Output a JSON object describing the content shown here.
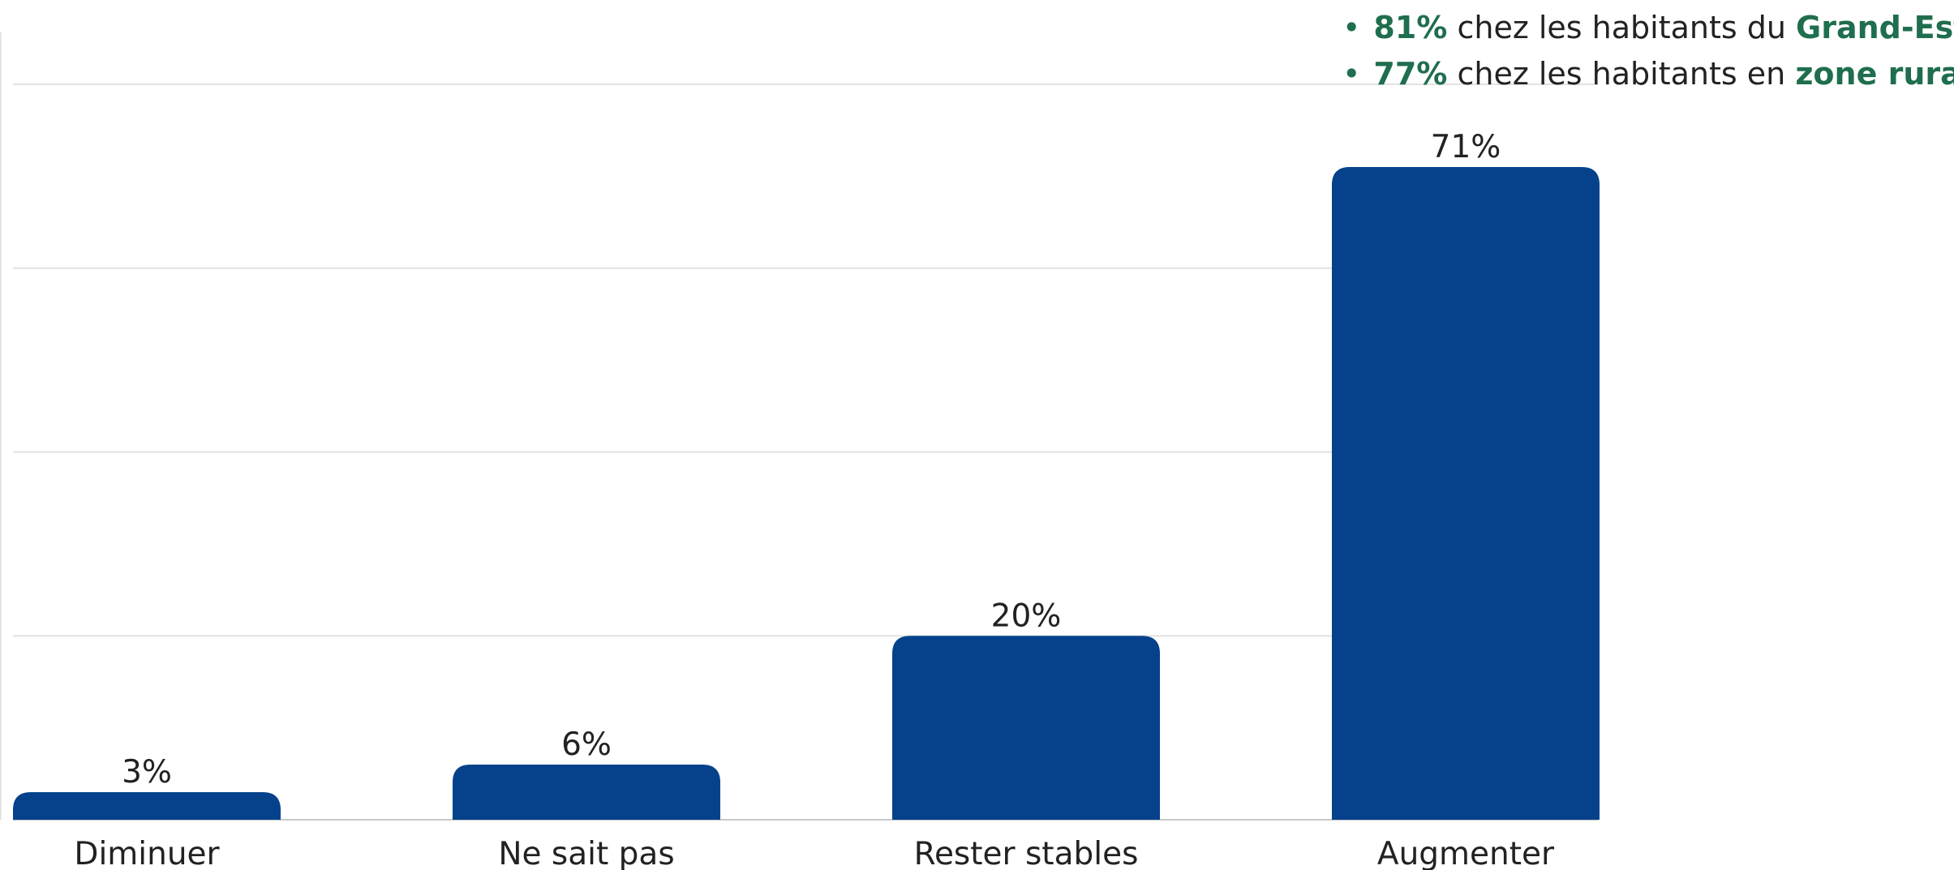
{
  "notes": [
    {
      "value": "81%",
      "text": " chez les habitants du ",
      "emphasis": "Grand-Est"
    },
    {
      "value": "77%",
      "text": " chez les habitants en ",
      "emphasis": "zone rurale"
    }
  ],
  "chart_data": {
    "type": "bar",
    "categories": [
      "Diminuer",
      "Ne sait pas",
      "Rester stables",
      "Augmenter"
    ],
    "values": [
      3,
      6,
      20,
      71
    ],
    "value_labels": [
      "3%",
      "6%",
      "20%",
      "71%"
    ],
    "title": "",
    "xlabel": "",
    "ylabel": "",
    "ylim": [
      0,
      80
    ],
    "grid": true,
    "legend": "none",
    "colors": {
      "bar": "#05428b",
      "grid": "#e2e2e2",
      "emphasis": "#1f6e4e",
      "text": "#222222"
    }
  }
}
